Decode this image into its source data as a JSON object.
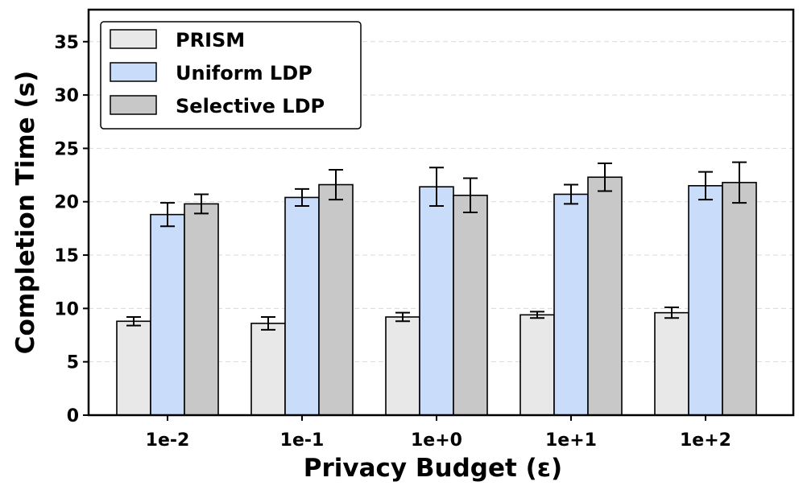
{
  "chart_data": {
    "type": "bar",
    "title": "",
    "xlabel": "Privacy Budget (ε)",
    "ylabel": "Completion Time (s)",
    "categories": [
      "1e-2",
      "1e-1",
      "1e+0",
      "1e+1",
      "1e+2"
    ],
    "ylim": [
      0,
      38
    ],
    "yticks": [
      0,
      5,
      10,
      15,
      20,
      25,
      30,
      35
    ],
    "grid": true,
    "legend_position": "top-left",
    "series": [
      {
        "name": "PRISM",
        "color": "#e8e8e8",
        "values": [
          8.8,
          8.6,
          9.2,
          9.4,
          9.6
        ],
        "errors": [
          0.4,
          0.6,
          0.4,
          0.3,
          0.5
        ]
      },
      {
        "name": "Uniform LDP",
        "color": "#c9dcfa",
        "values": [
          18.8,
          20.4,
          21.4,
          20.7,
          21.5
        ],
        "errors": [
          1.1,
          0.8,
          1.8,
          0.9,
          1.3
        ]
      },
      {
        "name": "Selective LDP",
        "color": "#c8c8c8",
        "values": [
          19.8,
          21.6,
          20.6,
          22.3,
          21.8
        ],
        "errors": [
          0.9,
          1.4,
          1.6,
          1.3,
          1.9
        ]
      }
    ]
  }
}
